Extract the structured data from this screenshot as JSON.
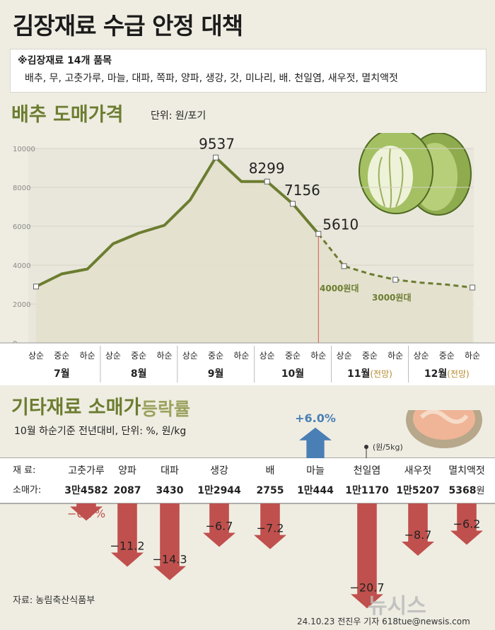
{
  "title": "김장재료 수급 안정 대책",
  "items_box": {
    "heading": "※김장재료 14개 품목",
    "list": "배추, 무, 고춧가루, 마늘, 대파, 쪽파, 양파, 생강, 갓, 미나리, 배. 천일염, 새우젓, 멸치액젓"
  },
  "cabbage_section": {
    "title": "배추 도매가격",
    "unit": "단위: 원/포기"
  },
  "others_section": {
    "title": "기타재료 소매가",
    "subtitle": "등락률",
    "note": "10월 하순기준 전년대비, 단위: %, 원/kg"
  },
  "source": "자료: 농림축산식품부",
  "credit": "24.10.23 전진우 기자 618tue@newsis.com",
  "logo": "뉴시스",
  "colors": {
    "line": "#6c7d30",
    "area": "#e3e0cd",
    "up": "#4a7fb5",
    "down": "#c0504d",
    "divider": "#e0524d"
  },
  "chart_data": [
    {
      "type": "line",
      "ylim": [
        0,
        10000
      ],
      "yticks": [
        0,
        2000,
        4000,
        6000,
        8000,
        10000
      ],
      "x": [
        "상순",
        "중순",
        "하순",
        "상순",
        "중순",
        "하순",
        "상순",
        "중순",
        "하순",
        "상순",
        "중순",
        "하순",
        "상순",
        "중순",
        "하순",
        "상순",
        "중순",
        "하순"
      ],
      "months": [
        {
          "label": "7월",
          "suffix": ""
        },
        {
          "label": "8월",
          "suffix": ""
        },
        {
          "label": "9월",
          "suffix": ""
        },
        {
          "label": "10월",
          "suffix": ""
        },
        {
          "label": "11월",
          "suffix": "(전망)"
        },
        {
          "label": "12월",
          "suffix": "(전망)"
        }
      ],
      "actual": [
        2900,
        3550,
        3800,
        5100,
        5650,
        6050,
        7350,
        9537,
        8299,
        8299,
        7156,
        5610
      ],
      "forecast": [
        5610,
        3950,
        3550,
        3250,
        3100,
        3000,
        2850
      ],
      "value_labels": [
        {
          "index": 7,
          "text": "9537"
        },
        {
          "index": 9,
          "text": "8299"
        },
        {
          "index": 10,
          "text": "7156"
        },
        {
          "index": 11,
          "text": "5610"
        }
      ],
      "forecast_labels": [
        "4000원대",
        "3000원대"
      ]
    },
    {
      "type": "bar",
      "row_labels": {
        "item": "재  료:",
        "price": "소매가:"
      },
      "price_unit_note": "(원/5kg)",
      "price_unit_suffix": "원",
      "categories": [
        "고춧가루",
        "양파",
        "대파",
        "생강",
        "배",
        "마늘",
        "천일염",
        "새우젓",
        "멸치액젓"
      ],
      "prices": [
        "3만4582",
        "2087",
        "3430",
        "1만2944",
        "2755",
        "1만444",
        "1만1170",
        "1만5207",
        "5368"
      ],
      "changes": [
        -0.7,
        -11.2,
        -14.3,
        -6.7,
        -7.2,
        6.0,
        -20.7,
        -8.7,
        -6.2
      ],
      "labels": [
        "−0.7%",
        "−11.2",
        "−14.3",
        "−6.7",
        "−7.2",
        "+6.0%",
        "−20.7",
        "−8.7",
        "−6.2"
      ]
    }
  ]
}
